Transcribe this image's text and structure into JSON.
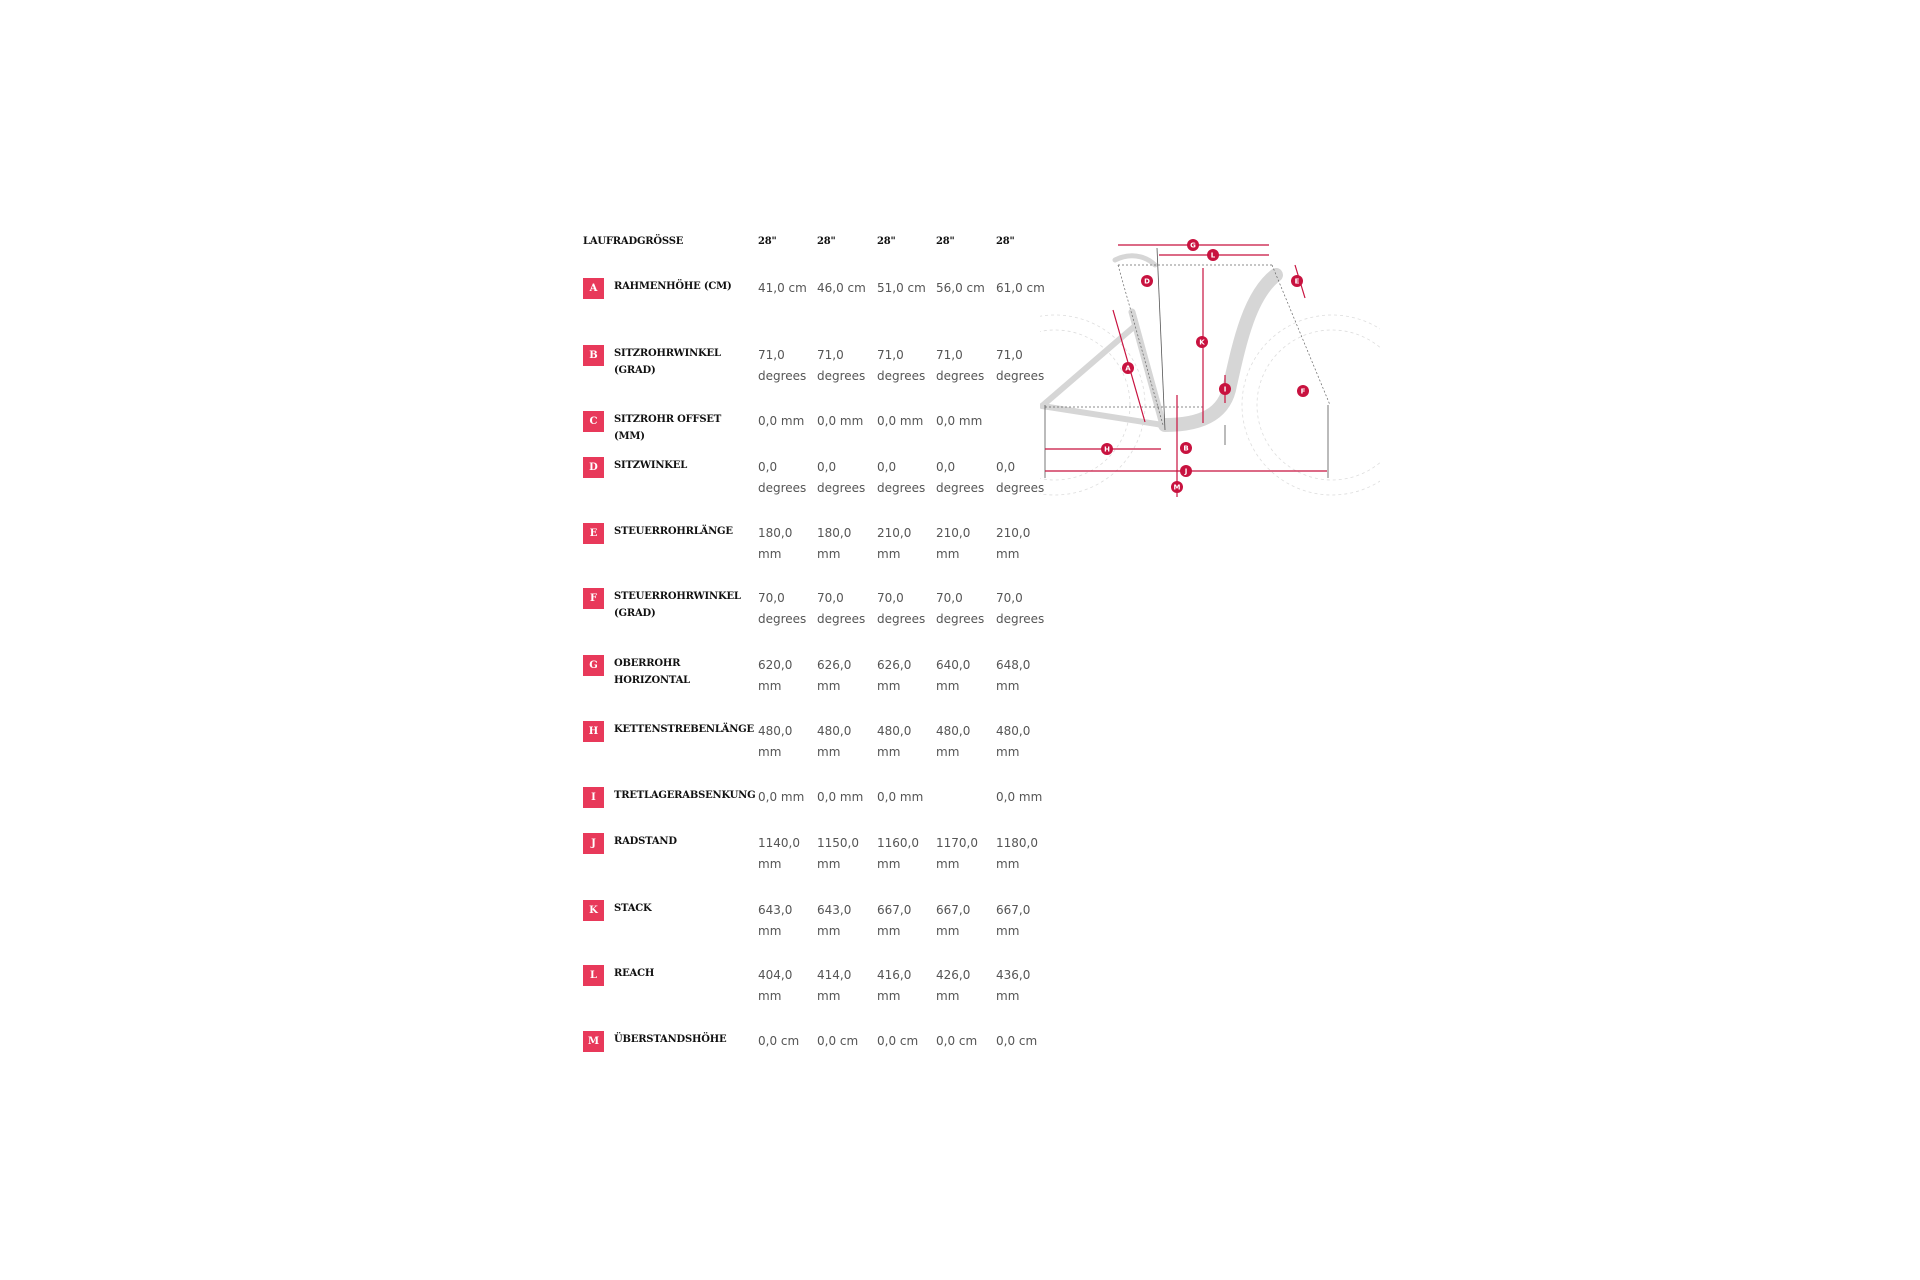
{
  "header": {
    "label": "LAUFRADGRÖSSE",
    "sizes": [
      "28\"",
      "28\"",
      "28\"",
      "28\"",
      "28\""
    ]
  },
  "rows": [
    {
      "key": "A",
      "label": "RAHMENHÖHE (CM)",
      "values": [
        "41,0 cm",
        "46,0 cm",
        "51,0 cm",
        "56,0 cm",
        "61,0 cm"
      ]
    },
    {
      "key": "B",
      "label": "SITZROHRWINKEL (GRAD)",
      "values": [
        "71,0 degrees",
        "71,0 degrees",
        "71,0 degrees",
        "71,0 degrees",
        "71,0 degrees"
      ]
    },
    {
      "key": "C",
      "label": "SITZROHR OFFSET (MM)",
      "values": [
        "0,0 mm",
        "0,0 mm",
        "0,0 mm",
        "0,0 mm",
        ""
      ]
    },
    {
      "key": "D",
      "label": "SITZWINKEL",
      "values": [
        "0,0 degrees",
        "0,0 degrees",
        "0,0 degrees",
        "0,0 degrees",
        "0,0 degrees"
      ]
    },
    {
      "key": "E",
      "label": "STEUERROHRLÄNGE",
      "values": [
        "180,0 mm",
        "180,0 mm",
        "210,0 mm",
        "210,0 mm",
        "210,0 mm"
      ]
    },
    {
      "key": "F",
      "label": "STEUERROHRWINKEL (GRAD)",
      "values": [
        "70,0 degrees",
        "70,0 degrees",
        "70,0 degrees",
        "70,0 degrees",
        "70,0 degrees"
      ]
    },
    {
      "key": "G",
      "label": "OBERROHR HORIZONTAL",
      "values": [
        "620,0 mm",
        "626,0 mm",
        "626,0 mm",
        "640,0 mm",
        "648,0 mm"
      ]
    },
    {
      "key": "H",
      "label": "KETTENSTREBENLÄNGE",
      "values": [
        "480,0 mm",
        "480,0 mm",
        "480,0 mm",
        "480,0 mm",
        "480,0 mm"
      ]
    },
    {
      "key": "I",
      "label": "TRETLAGERABSENKUNG",
      "values": [
        "0,0 mm",
        "0,0 mm",
        "0,0 mm",
        "",
        "0,0 mm"
      ]
    },
    {
      "key": "J",
      "label": "RADSTAND",
      "values": [
        "1140,0 mm",
        "1150,0 mm",
        "1160,0 mm",
        "1170,0 mm",
        "1180,0 mm"
      ]
    },
    {
      "key": "K",
      "label": "STACK",
      "values": [
        "643,0 mm",
        "643,0 mm",
        "667,0 mm",
        "667,0 mm",
        "667,0 mm"
      ]
    },
    {
      "key": "L",
      "label": "REACH",
      "values": [
        "404,0 mm",
        "414,0 mm",
        "416,0 mm",
        "426,0 mm",
        "436,0 mm"
      ]
    },
    {
      "key": "M",
      "label": "ÜBERSTANDSHÖHE",
      "values": [
        "0,0 cm",
        "0,0 cm",
        "0,0 cm",
        "0,0 cm",
        "0,0 cm"
      ]
    }
  ],
  "diagram_markers": [
    "A",
    "B",
    "D",
    "E",
    "F",
    "G",
    "H",
    "I",
    "J",
    "K",
    "L",
    "M"
  ],
  "colors": {
    "accent": "#e8395a",
    "marker": "#c8123f",
    "frame": "#d6d6d6"
  }
}
